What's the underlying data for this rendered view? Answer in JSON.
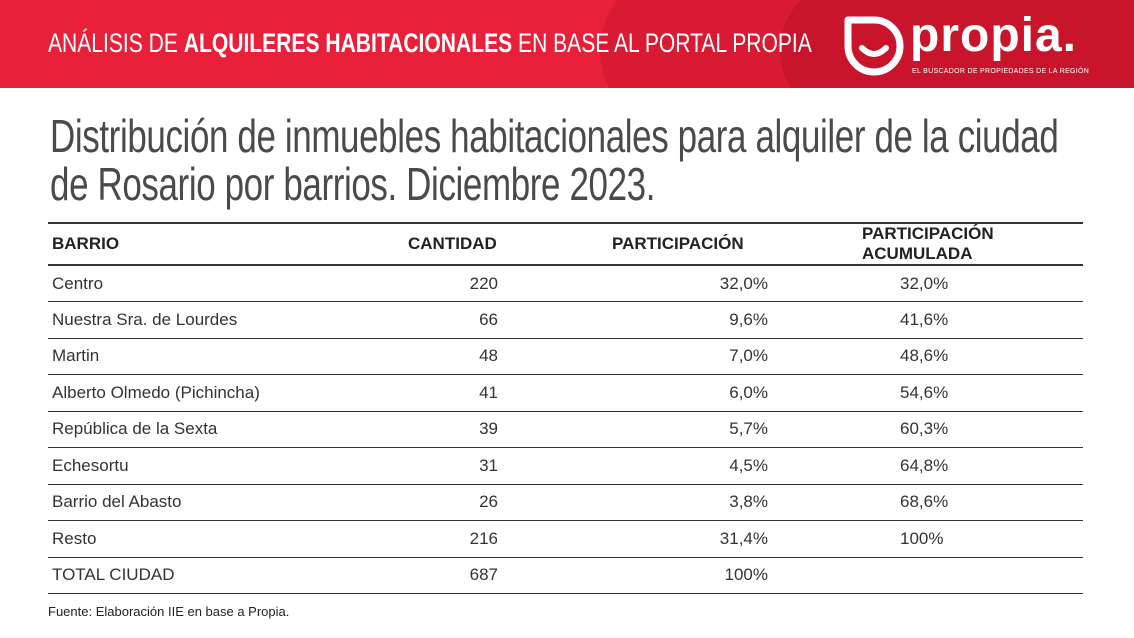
{
  "banner": {
    "prefix": "ANÁLISIS DE ",
    "bold": "ALQUILERES HABITACIONALES",
    "suffix": " EN BASE AL PORTAL PROPIA"
  },
  "logo": {
    "word": "propia.",
    "tagline": "EL BUSCADOR DE PROPIEDADES DE LA REGIÓN"
  },
  "title": {
    "line1": "Distribución de inmuebles habitacionales para alquiler de la ciudad",
    "line2": "de Rosario por barrios. Diciembre 2023."
  },
  "colors": {
    "accent": "#e8203a",
    "text": "#333333"
  },
  "chart_data": {
    "type": "table",
    "columns": [
      "BARRIO",
      "CANTIDAD",
      "PARTICIPACIÓN",
      "PARTICIPACIÓN ACUMULADA"
    ],
    "rows": [
      [
        "Centro",
        "220",
        "32,0%",
        "32,0%"
      ],
      [
        "Nuestra Sra. de Lourdes",
        "66",
        "9,6%",
        "41,6%"
      ],
      [
        "Martin",
        "48",
        "7,0%",
        "48,6%"
      ],
      [
        "Alberto Olmedo (Pichincha)",
        "41",
        "6,0%",
        "54,6%"
      ],
      [
        "República de la Sexta",
        "39",
        "5,7%",
        "60,3%"
      ],
      [
        "Echesortu",
        "31",
        "4,5%",
        "64,8%"
      ],
      [
        "Barrio del Abasto",
        "26",
        "3,8%",
        "68,6%"
      ],
      [
        "Resto",
        "216",
        "31,4%",
        "100%"
      ],
      [
        "TOTAL CIUDAD",
        "687",
        "100%",
        ""
      ]
    ]
  },
  "source": "Fuente: Elaboración IIE en base a Propia."
}
